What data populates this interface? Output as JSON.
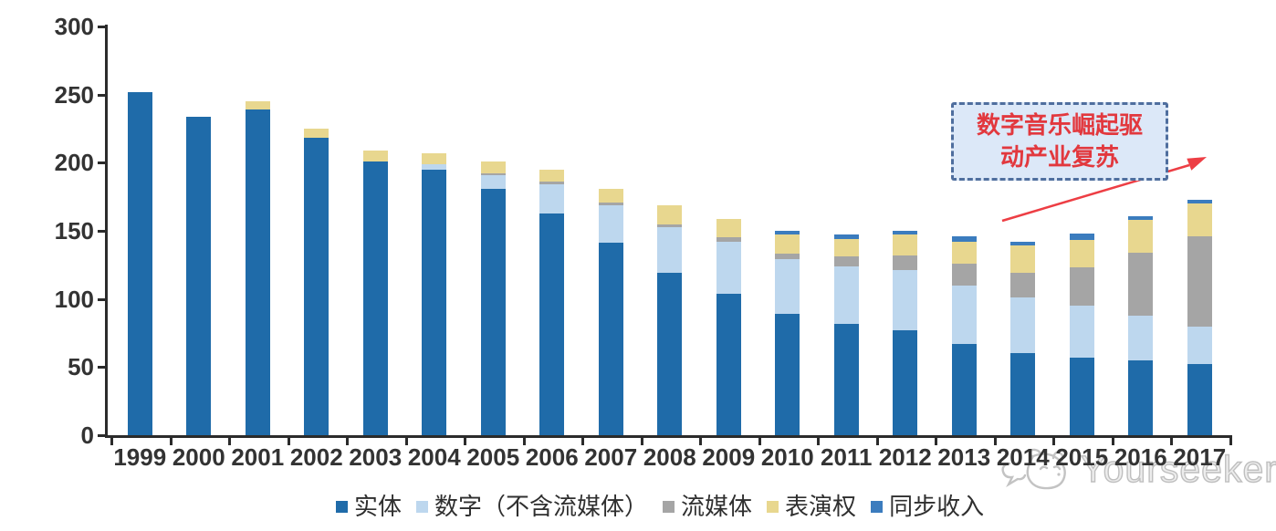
{
  "chart_data": {
    "type": "bar",
    "stacked": true,
    "title": "",
    "categories": [
      "1999",
      "2000",
      "2001",
      "2002",
      "2003",
      "2004",
      "2005",
      "2006",
      "2007",
      "2008",
      "2009",
      "2010",
      "2011",
      "2012",
      "2013",
      "2014",
      "2015",
      "2016",
      "2017"
    ],
    "series": [
      {
        "name": "实体",
        "color": "#1f6ba9",
        "values": [
          252,
          234,
          239,
          218,
          201,
          195,
          181,
          163,
          141,
          119,
          104,
          89,
          82,
          77,
          67,
          60,
          57,
          55,
          52
        ]
      },
      {
        "name": "数字（不含流媒体）",
        "color": "#bdd7ee",
        "values": [
          0,
          0,
          0,
          0,
          0,
          4,
          10,
          21,
          28,
          34,
          38,
          40,
          42,
          44,
          43,
          41,
          38,
          33,
          28
        ]
      },
      {
        "name": "流媒体",
        "color": "#a5a5a5",
        "values": [
          0,
          0,
          0,
          0,
          0,
          0,
          1,
          2,
          2,
          2,
          3,
          4,
          7,
          11,
          16,
          18,
          28,
          46,
          66
        ]
      },
      {
        "name": "表演权",
        "color": "#e8d78f",
        "values": [
          0,
          0,
          6,
          7,
          8,
          8,
          9,
          9,
          10,
          14,
          14,
          14,
          13,
          15,
          16,
          20,
          20,
          24,
          24
        ]
      },
      {
        "name": "同步收入",
        "color": "#3b7cbe",
        "values": [
          0,
          0,
          0,
          0,
          0,
          0,
          0,
          0,
          0,
          0,
          0,
          3,
          3,
          3,
          4,
          3,
          5,
          3,
          3
        ]
      }
    ],
    "y_axis": {
      "min": 0,
      "max": 300,
      "ticks": [
        0,
        50,
        100,
        150,
        200,
        250,
        300
      ]
    },
    "x_axis_ticks": 20,
    "grid": false,
    "legend_position": "bottom"
  },
  "annotation": {
    "line1": "数字音乐崛起驱",
    "line2": "动产业复苏",
    "text_color": "#e2383e",
    "box_fill": "#dce8f8",
    "box_border": "#4f6e9e",
    "arrow_color": "#ed3e44"
  },
  "watermark": {
    "text": "Yourseeker",
    "color": "#bfbfbf"
  },
  "axis_color": "#2b2b2b"
}
